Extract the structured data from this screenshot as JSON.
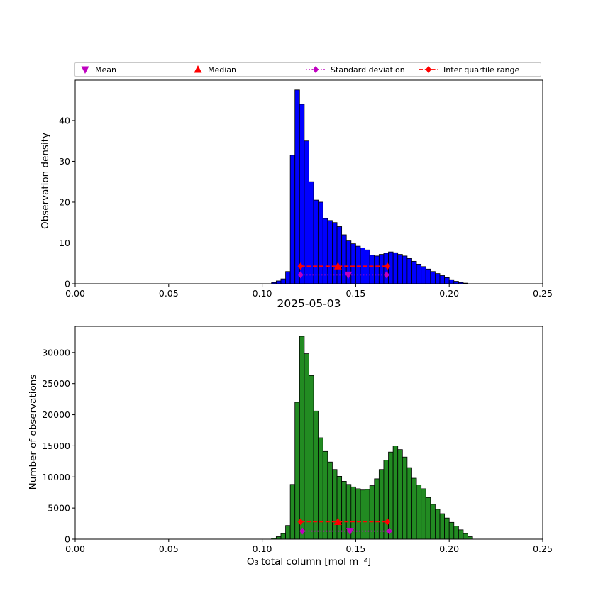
{
  "title": "2025-05-03",
  "legend": {
    "items": [
      {
        "label": "Mean",
        "marker": "triangle-down",
        "color": "#c000c0",
        "line": "none"
      },
      {
        "label": "Median",
        "marker": "triangle-up",
        "color": "#ff0000",
        "line": "none"
      },
      {
        "label": "Standard deviation",
        "marker": "diamond",
        "color": "#c000c0",
        "line": "dotted"
      },
      {
        "label": "Inter quartile range",
        "marker": "diamond",
        "color": "#ff0000",
        "line": "dashed"
      }
    ]
  },
  "chart_data": [
    {
      "type": "bar",
      "title": "",
      "ylabel": "Observation density",
      "xlabel": "",
      "xlim": [
        0,
        0.25
      ],
      "ylim": [
        0,
        49.9
      ],
      "xticks": [
        0,
        0.05,
        0.1,
        0.15,
        0.2,
        0.25
      ],
      "xtick_labels": [
        "0.00",
        "0.05",
        "0.10",
        "0.15",
        "0.20",
        "0.25"
      ],
      "yticks": [
        0,
        10,
        20,
        30,
        40
      ],
      "ytick_labels": [
        "0",
        "10",
        "20",
        "30",
        "40"
      ],
      "grid": false,
      "bar_color": "#0000ff",
      "bar_edge_color": "#000000",
      "bin_start": 0.105,
      "bin_width": 0.0025,
      "values": [
        0.3,
        0.7,
        1.2,
        3.0,
        31.5,
        47.5,
        44.0,
        35.0,
        25.0,
        20.5,
        20.0,
        16.0,
        15.5,
        15.0,
        14.0,
        12.0,
        10.5,
        9.8,
        9.2,
        8.8,
        8.3,
        7.0,
        6.8,
        7.2,
        7.5,
        7.8,
        7.6,
        7.2,
        6.8,
        6.2,
        5.5,
        4.8,
        4.2,
        3.6,
        3.0,
        2.5,
        2.0,
        1.5,
        1.0,
        0.6,
        0.3,
        0.15
      ],
      "annotations": [
        {
          "name": "iqr",
          "type": "line",
          "x1": 0.1205,
          "x2": 0.167,
          "y": 4.3,
          "color": "#ff0000",
          "dash": "dashed",
          "endmarker": "diamond"
        },
        {
          "name": "median",
          "type": "marker",
          "x": 0.1405,
          "y": 4.3,
          "color": "#ff0000",
          "marker": "triangle-up"
        },
        {
          "name": "std",
          "type": "line",
          "x1": 0.1205,
          "x2": 0.1665,
          "y": 2.2,
          "color": "#c000c0",
          "dash": "dotted",
          "endmarker": "diamond"
        },
        {
          "name": "mean",
          "type": "marker",
          "x": 0.146,
          "y": 2.2,
          "color": "#c000c0",
          "marker": "triangle-down"
        }
      ]
    },
    {
      "type": "bar",
      "title": "",
      "ylabel": "Number of observations",
      "xlabel": "O₃ total column [mol m⁻²]",
      "xlim": [
        0,
        0.25
      ],
      "ylim": [
        0,
        34200
      ],
      "xticks": [
        0,
        0.05,
        0.1,
        0.15,
        0.2,
        0.25
      ],
      "xtick_labels": [
        "0.00",
        "0.05",
        "0.10",
        "0.15",
        "0.20",
        "0.25"
      ],
      "yticks": [
        0,
        5000,
        10000,
        15000,
        20000,
        25000,
        30000
      ],
      "ytick_labels": [
        "0",
        "5000",
        "10000",
        "15000",
        "20000",
        "25000",
        "30000"
      ],
      "grid": false,
      "bar_color": "#228b22",
      "bar_edge_color": "#000000",
      "bin_start": 0.105,
      "bin_width": 0.0025,
      "values": [
        150,
        400,
        900,
        2200,
        8800,
        22000,
        32600,
        29800,
        26300,
        20600,
        16300,
        14100,
        12400,
        11200,
        10100,
        9300,
        8800,
        8400,
        8100,
        7900,
        8000,
        8600,
        9700,
        11200,
        12700,
        14000,
        15000,
        14400,
        13200,
        11500,
        9800,
        8700,
        8100,
        6700,
        5600,
        4800,
        4100,
        3400,
        2700,
        2100,
        1500,
        900,
        400
      ],
      "annotations": [
        {
          "name": "iqr",
          "type": "line",
          "x1": 0.1205,
          "x2": 0.167,
          "y": 2800,
          "color": "#ff0000",
          "dash": "dashed",
          "endmarker": "diamond"
        },
        {
          "name": "median",
          "type": "marker",
          "x": 0.1405,
          "y": 2800,
          "color": "#ff0000",
          "marker": "triangle-up"
        },
        {
          "name": "std",
          "type": "line",
          "x1": 0.1215,
          "x2": 0.168,
          "y": 1300,
          "color": "#c000c0",
          "dash": "dotted",
          "endmarker": "diamond"
        },
        {
          "name": "mean",
          "type": "marker",
          "x": 0.147,
          "y": 1300,
          "color": "#c000c0",
          "marker": "triangle-down"
        }
      ]
    }
  ]
}
